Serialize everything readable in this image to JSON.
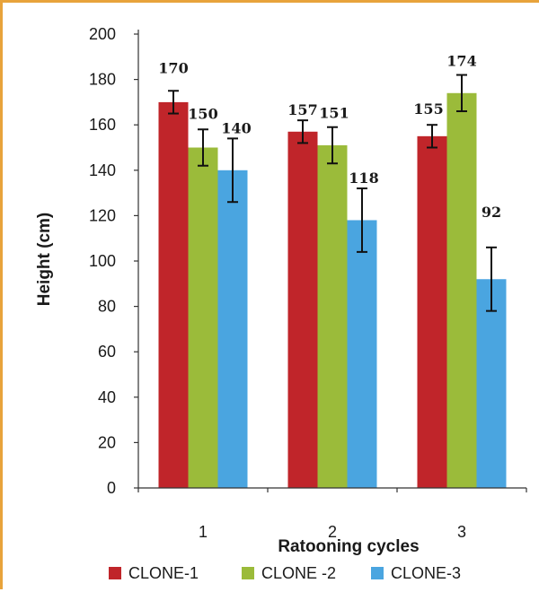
{
  "chart_data": {
    "type": "bar",
    "title": "",
    "xlabel": "Ratooning cycles",
    "ylabel": "Height (cm)",
    "ylim": [
      0,
      200
    ],
    "ytick_step": 20,
    "categories": [
      "1",
      "2",
      "3"
    ],
    "grid": false,
    "legend_position": "bottom",
    "series": [
      {
        "name": "CLONE-1",
        "color": "#c0252a",
        "values": [
          170,
          157,
          155
        ],
        "errors": [
          5,
          5,
          5
        ],
        "labels": [
          "170",
          "157",
          "155"
        ]
      },
      {
        "name": "CLONE -2",
        "color": "#9bbb3a",
        "values": [
          150,
          151,
          174
        ],
        "errors": [
          8,
          8,
          8
        ],
        "labels": [
          "150",
          "151",
          "174"
        ]
      },
      {
        "name": "CLONE-3",
        "color": "#4aa5e0",
        "values": [
          140,
          118,
          92
        ],
        "errors": [
          14,
          14,
          14
        ],
        "labels": [
          "140",
          "118",
          "92"
        ]
      }
    ]
  }
}
